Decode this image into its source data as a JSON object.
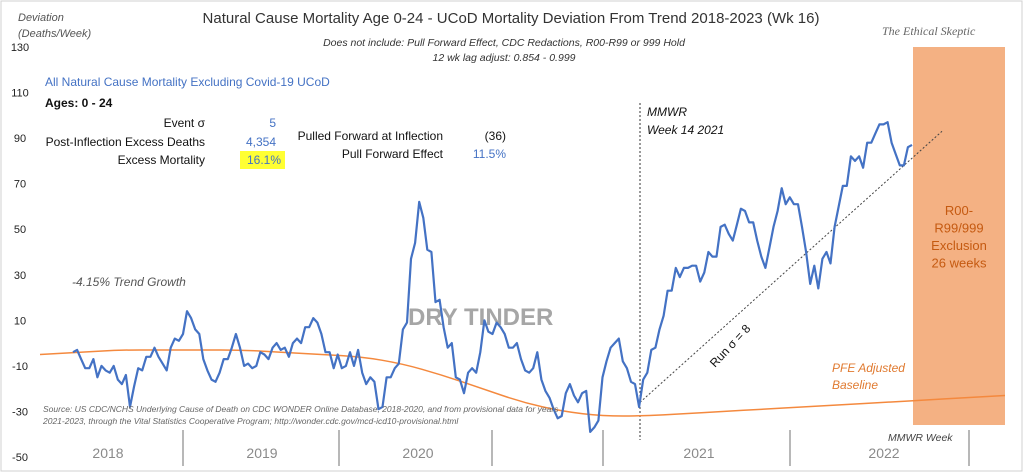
{
  "chart_data": {
    "type": "line",
    "title": "Natural Cause Mortality Age 0-24 - UCoD Mortality Deviation  From Trend  2018-2023 (Wk 16)",
    "subtitle_1": "Does not include: Pull Forward Effect,  CDC Redactions, R00-R99 or 999 Hold",
    "subtitle_2": "12 wk lag adjust: 0.854 - 0.999",
    "ylabel_1": "Deviation",
    "ylabel_2": "(Deaths/Week)",
    "xlabel": "MMWR Week",
    "ylim": [
      -50,
      130
    ],
    "yticks": [
      "130",
      "110",
      "90",
      "70",
      "50",
      "30",
      "10",
      "-10",
      "-30",
      "-50"
    ],
    "year_labels": [
      "2018",
      "2019",
      "2020",
      "2021",
      "2022"
    ],
    "grid": false,
    "series": [
      {
        "name": "All Natural Cause Mortality Excluding Covid-19 UCoD",
        "color": "#4472c4",
        "values": [
          -4,
          -3,
          -7,
          -11,
          -11,
          -7,
          -15,
          -10,
          -12,
          -13,
          -10,
          -16,
          -18,
          -14,
          -28,
          -19,
          -11,
          -12,
          -6,
          -6,
          -2,
          -6,
          -9,
          -12,
          -2,
          2,
          1,
          4,
          14,
          11,
          6,
          4,
          -7,
          -12,
          -16,
          -17,
          -13,
          -7,
          -7,
          -2,
          4,
          -2,
          -10,
          -9,
          -11,
          -10,
          -4,
          -5,
          -7,
          -2,
          0,
          -3,
          -2,
          -6,
          0,
          2,
          0,
          7,
          7,
          11,
          9,
          4,
          -4,
          -4,
          -11,
          -5,
          -11,
          -10,
          -4,
          -10,
          -3,
          -13,
          -18,
          -15,
          -17,
          -29,
          -28,
          -15,
          -15,
          -11,
          -9,
          6,
          9,
          37,
          44,
          62,
          55,
          41,
          40,
          18,
          19,
          7,
          -2,
          0,
          -15,
          -16,
          -22,
          -13,
          -11,
          -13,
          -4,
          10,
          5,
          4,
          9,
          7,
          4,
          -2,
          -2,
          0,
          -7,
          -12,
          -13,
          -11,
          -4,
          -16,
          -21,
          -24,
          -29,
          -33,
          -32,
          -22,
          -18,
          -23,
          -26,
          -22,
          -21,
          -39,
          -37,
          -34,
          -15,
          -8,
          -2,
          0,
          2,
          -8,
          -11,
          -17,
          -18,
          -28,
          -16,
          -13,
          -3,
          -2,
          6,
          12,
          23,
          23,
          33,
          29,
          33,
          33,
          34,
          34,
          27,
          31,
          40,
          38,
          38,
          51,
          52,
          48,
          45,
          52,
          59,
          58,
          53,
          53,
          45,
          38,
          33,
          42,
          51,
          58,
          68,
          61,
          64,
          61,
          61,
          51,
          40,
          26,
          34,
          24,
          37,
          40,
          35,
          51,
          60,
          69,
          69,
          82,
          80,
          82,
          77,
          88,
          88,
          92,
          96,
          96,
          97,
          88,
          83,
          78,
          78,
          86,
          87
        ]
      },
      {
        "name": "PFE Adjusted Baseline",
        "color": "#f4893e",
        "values": [
          -5,
          -4,
          -3,
          -3,
          -3,
          -3,
          -4,
          -5,
          -6,
          -9,
          -14,
          -20,
          -26,
          -30,
          -32,
          -32,
          -31,
          -30,
          -29,
          -28,
          -27,
          -26,
          -25,
          -24,
          -23
        ]
      }
    ],
    "trend_line": {
      "label": "Run σ = 8",
      "from": -26,
      "to": 93
    },
    "inflection_label_1": "MMWR",
    "inflection_label_2": "Week 14 2021",
    "trend_growth": "-4.15% Trend Growth",
    "watermark": "DRY TINDER",
    "exclusion": {
      "lines": [
        "R00-",
        "R99/999",
        "Exclusion",
        "26 weeks"
      ],
      "fill": "#f4b183",
      "text_color": "#c55a11"
    },
    "baseline_label_1": "PFE Adjusted",
    "baseline_label_2": "Baseline",
    "source_1": "Source: US CDC/NCHS Underlying Cause of Death on CDC WONDER Online Database, 2018-2020, and from provisional data for years",
    "source_2": "2021-2023, through the Vital Statistics Cooperative Program; http://wonder.cdc.gov/mcd-icd10-provisional.html",
    "brand": "The Ethical Skeptic"
  },
  "stats": {
    "heading": "All Natural Cause Mortality Excluding Covid-19 UCoD",
    "ages": "Ages: 0 - 24",
    "event_sigma_label": "Event σ",
    "event_sigma_value": "5",
    "excess_deaths_label": "Post-Inflection Excess Deaths",
    "excess_deaths_value": "4,354",
    "excess_mortality_label": "Excess Mortality",
    "excess_mortality_value": "16.1%",
    "pulled_forward_label": "Pulled Forward at Inflection",
    "pulled_forward_value": "(36)",
    "pfe_label": "Pull Forward Effect",
    "pfe_value": "11.5%",
    "highlight_color": "#ffff33",
    "value_color": "#4472c4"
  }
}
